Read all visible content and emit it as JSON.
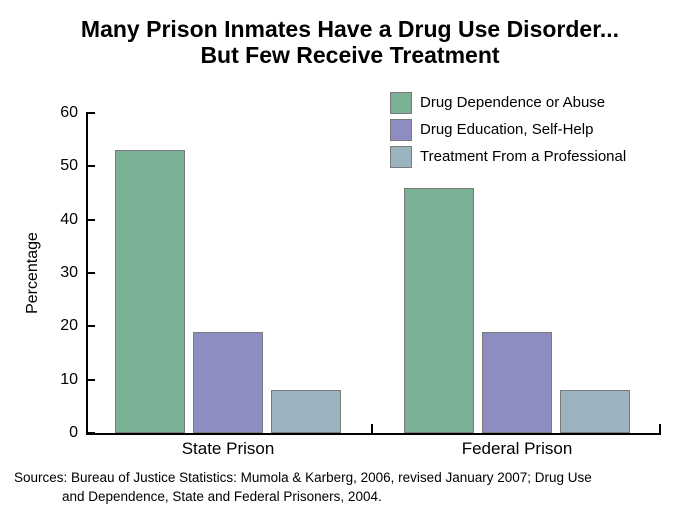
{
  "title": {
    "line1": "Many Prison Inmates Have a Drug Use Disorder...",
    "line2": "But Few Receive Treatment"
  },
  "chart_data": {
    "type": "bar",
    "categories": [
      "State Prison",
      "Federal Prison"
    ],
    "series": [
      {
        "name": "Drug Dependence or Abuse",
        "color": "#7AB194",
        "values": [
          53,
          46
        ]
      },
      {
        "name": "Drug Education, Self-Help",
        "color": "#8E8DC1",
        "values": [
          19,
          19
        ]
      },
      {
        "name": "Treatment From a Professional",
        "color": "#9AB3BF",
        "values": [
          8,
          8
        ]
      }
    ],
    "title": "Many Prison Inmates Have a Drug Use Disorder... But Few Receive Treatment",
    "xlabel": "",
    "ylabel": "Percentage",
    "ylim": [
      0,
      60
    ],
    "yticks": [
      0,
      10,
      20,
      30,
      40,
      50,
      60
    ],
    "grid": false,
    "legend_position": "top-right",
    "bar_border_color": "#7a7a7a",
    "axis_color": "#000000"
  },
  "source": {
    "line1": "Sources: Bureau of Justice Statistics: Mumola & Karberg, 2006, revised January 2007; Drug Use",
    "line2": "and Dependence, State and Federal Prisoners, 2004."
  }
}
